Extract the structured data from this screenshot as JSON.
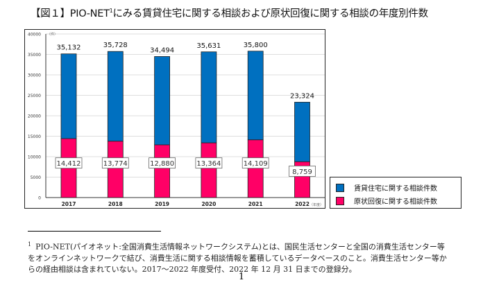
{
  "title": {
    "prefix": "【図１】PIO-NET",
    "sup": "1",
    "rest": "にみる賃貸住宅に関する相談および原状回復に関する相談の年度別件数"
  },
  "chart_data": {
    "type": "bar",
    "categories": [
      "2017",
      "2018",
      "2019",
      "2020",
      "2021",
      "2022"
    ],
    "series": [
      {
        "name": "賃貸住宅に関する相談件数",
        "values": [
          35132,
          35728,
          34494,
          35631,
          35800,
          23324
        ],
        "color": "#0070c0",
        "labels": [
          "35,132",
          "35,728",
          "34,494",
          "35,631",
          "35,800",
          "23,324"
        ]
      },
      {
        "name": "原状回復に関する相談件数",
        "values": [
          14412,
          13774,
          12880,
          13364,
          14109,
          8759
        ],
        "color": "#ff0066",
        "labels": [
          "14,412",
          "13,774",
          "12,880",
          "13,364",
          "14,109",
          "8,759"
        ]
      }
    ],
    "ylim": [
      0,
      40000
    ],
    "yticks": [
      0,
      5000,
      10000,
      15000,
      20000,
      25000,
      30000,
      35000,
      40000
    ],
    "y_unit": "（件）",
    "x_unit": "（年度）",
    "grid": true,
    "legend": "right"
  },
  "footnote": {
    "marker": "1",
    "text": "PIO-NET(パイオネット:全国消費生活情報ネットワークシステム)とは、国民生活センターと全国の消費生活センター等をオンラインネットワークで結び、消費生活に関する相談情報を蓄積しているデータベースのこと。消費生活センター等からの経由相談は含まれていない。2017～2022 年度受付、2022 年 12 月 31 日までの登録分。"
  },
  "page_number": "1"
}
